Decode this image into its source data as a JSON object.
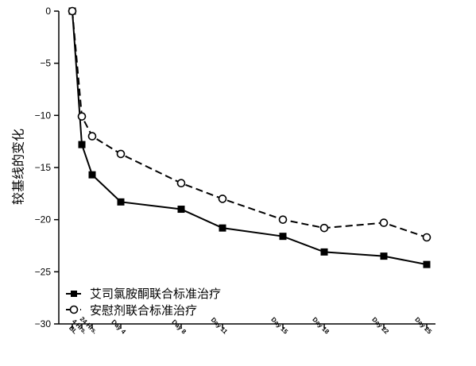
{
  "chart_data": {
    "type": "line",
    "title": "",
    "xlabel": "",
    "ylabel": "较基线的变化",
    "ylim": [
      -30,
      0
    ],
    "yticks": [
      "0",
      "−5",
      "−10",
      "−15",
      "−20",
      "−25",
      "−30"
    ],
    "ytick_values": [
      0,
      -5,
      -10,
      -15,
      -20,
      -25,
      -30
    ],
    "categories": [
      "BL",
      "4 Hrs.",
      "24 Hrs.",
      "Day 4",
      "Day 8",
      "Day 11",
      "Day 15",
      "Day 18",
      "Day 22",
      "Day 25"
    ],
    "x": [
      0,
      0.17,
      1,
      4,
      8,
      11,
      15,
      18,
      22,
      25
    ],
    "grid": false,
    "legend": "bottom-left",
    "series": [
      {
        "name": "艾司氯胺酮联合标准治疗",
        "style": "solid",
        "marker": "filled-square",
        "color": "#000000",
        "values": [
          0,
          -12.8,
          -15.7,
          -18.3,
          -19.0,
          -20.8,
          -21.6,
          -23.1,
          -23.5,
          -24.3
        ]
      },
      {
        "name": "安慰剂联合标准治疗",
        "style": "dashed",
        "marker": "open-circle",
        "color": "#000000",
        "values": [
          0,
          -10.1,
          -12.0,
          -13.7,
          -16.5,
          -18.0,
          -20.0,
          -20.8,
          -20.3,
          -21.7
        ]
      }
    ]
  }
}
